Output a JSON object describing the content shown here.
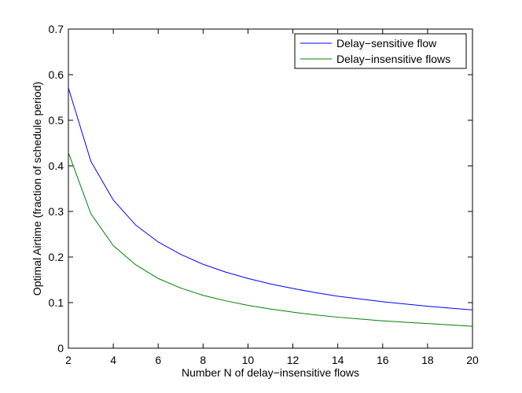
{
  "chart_data": {
    "type": "line",
    "title": "",
    "xlabel": "Number N of delay−insensitive flows",
    "ylabel": "Optimal Airtime (fraction of schedule period)",
    "xlim": [
      2,
      20
    ],
    "ylim": [
      0,
      0.7
    ],
    "xticks": [
      2,
      4,
      6,
      8,
      10,
      12,
      14,
      16,
      18,
      20
    ],
    "xtick_labels": [
      "2",
      "4",
      "6",
      "8",
      "10",
      "12",
      "14",
      "16",
      "18",
      "20"
    ],
    "yticks": [
      0,
      0.1,
      0.2,
      0.3,
      0.4,
      0.5,
      0.6,
      0.7
    ],
    "ytick_labels": [
      "0",
      "0.1",
      "0.2",
      "0.3",
      "0.4",
      "0.5",
      "0.6",
      "0.7"
    ],
    "grid": false,
    "legend_position": "top-right",
    "x": [
      2,
      3,
      4,
      5,
      6,
      7,
      8,
      9,
      10,
      11,
      12,
      13,
      14,
      15,
      16,
      17,
      18,
      19,
      20
    ],
    "series": [
      {
        "name": "Delay−sensitive flow",
        "color": "#0000ff",
        "values": [
          0.571,
          0.41,
          0.325,
          0.27,
          0.233,
          0.206,
          0.184,
          0.167,
          0.153,
          0.141,
          0.131,
          0.122,
          0.114,
          0.108,
          0.102,
          0.097,
          0.092,
          0.088,
          0.084
        ]
      },
      {
        "name": "Delay−insensitive flows",
        "color": "#008000",
        "values": [
          0.429,
          0.295,
          0.225,
          0.183,
          0.153,
          0.132,
          0.116,
          0.104,
          0.094,
          0.086,
          0.079,
          0.073,
          0.068,
          0.064,
          0.06,
          0.057,
          0.054,
          0.051,
          0.048
        ]
      }
    ]
  }
}
